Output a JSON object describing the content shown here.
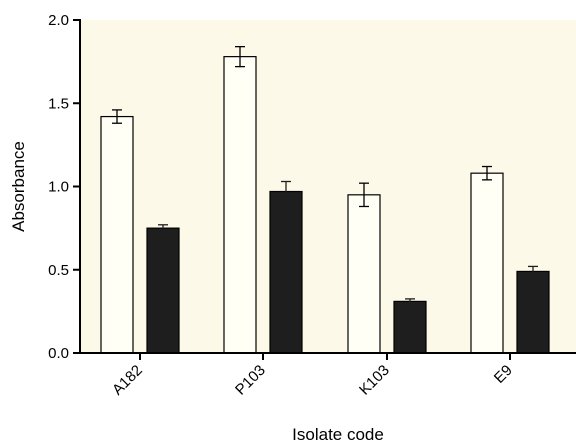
{
  "colors": {
    "plot_background": "#fdf9e8",
    "open_bar_fill": "#fffff6",
    "filled_bar_fill": "#1e1e1e",
    "axis": "#000000"
  },
  "chart_data": {
    "type": "bar",
    "title": "",
    "xlabel": "Isolate code",
    "ylabel": "Absorbance",
    "categories": [
      "A182",
      "P103",
      "K103",
      "E9"
    ],
    "ylim": [
      0.0,
      2.0
    ],
    "yticks": [
      "0.0",
      "0.5",
      "1.0",
      "1.5",
      "2.0"
    ],
    "grid": false,
    "legend": "none",
    "series": [
      {
        "style": "open",
        "values": [
          1.42,
          1.78,
          0.95,
          1.08
        ],
        "errors": [
          0.04,
          0.06,
          0.07,
          0.04
        ]
      },
      {
        "style": "filled",
        "values": [
          0.75,
          0.97,
          0.31,
          0.49
        ],
        "errors": [
          0.02,
          0.06,
          0.015,
          0.03
        ]
      }
    ]
  }
}
